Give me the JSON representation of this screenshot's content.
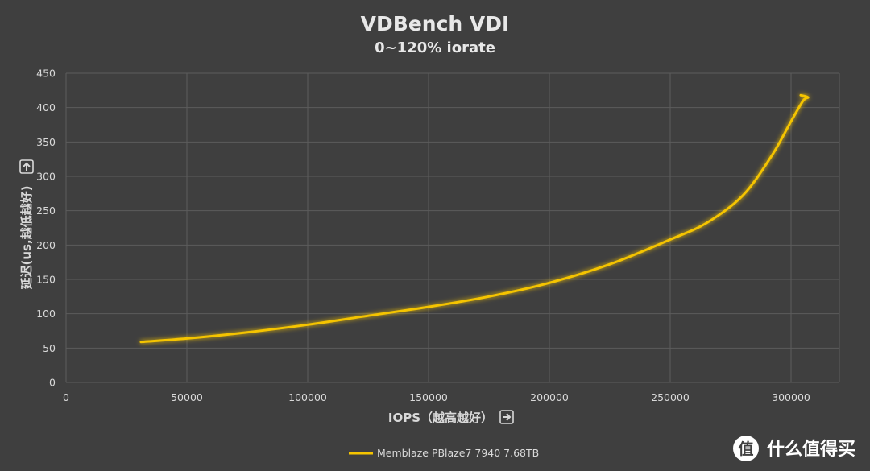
{
  "chart_data": {
    "type": "line",
    "title": "VDBench VDI",
    "subtitle": "0~120% iorate",
    "xlabel": "IOPS（越高越好）",
    "ylabel": "延迟(us,越低越好)",
    "xlim": [
      0,
      320000
    ],
    "ylim": [
      0,
      450
    ],
    "x_ticks": [
      0,
      50000,
      100000,
      150000,
      200000,
      250000,
      300000
    ],
    "y_ticks": [
      0,
      50,
      100,
      150,
      200,
      250,
      300,
      350,
      400,
      450
    ],
    "grid": true,
    "legend_position": "bottom",
    "series": [
      {
        "name": "Memblaze PBlaze7 7940 7.68TB",
        "color": "#f5c400",
        "x": [
          31000,
          50000,
          75000,
          100000,
          125000,
          150000,
          175000,
          200000,
          225000,
          250000,
          265000,
          280000,
          292000,
          300000,
          305000,
          307000,
          304000
        ],
        "y": [
          59,
          64,
          73,
          84,
          97,
          110,
          125,
          145,
          172,
          208,
          232,
          272,
          330,
          380,
          410,
          415,
          418
        ]
      }
    ]
  },
  "watermark": {
    "icon": "zhi-badge-icon",
    "text": "什么值得买"
  },
  "arrow_icons": {
    "down": "⬇",
    "right": "➡"
  }
}
